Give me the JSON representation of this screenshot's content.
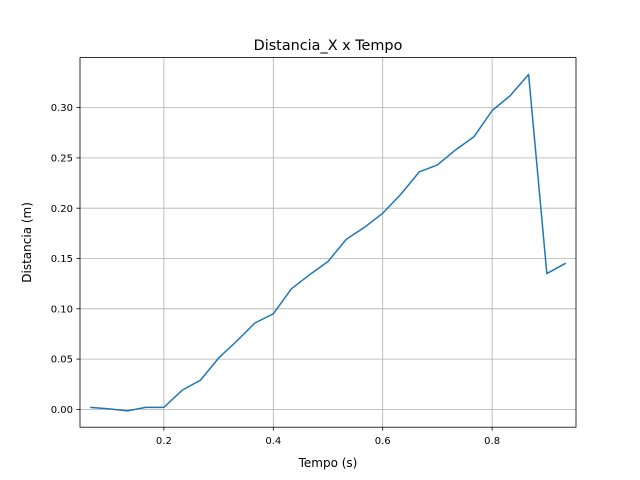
{
  "chart_data": {
    "type": "line",
    "title": "Distancia_X x Tempo",
    "xlabel": "Tempo (s)",
    "ylabel": "Distancia (m)",
    "xlim": [
      0.0467,
      0.9533
    ],
    "ylim": [
      -0.0177,
      0.3497
    ],
    "xticks": [
      0.2,
      0.4,
      0.6,
      0.8
    ],
    "xtick_labels": [
      "0.2",
      "0.4",
      "0.6",
      "0.8"
    ],
    "yticks": [
      0.0,
      0.05,
      0.1,
      0.15,
      0.2,
      0.25,
      0.3
    ],
    "ytick_labels": [
      "0.00",
      "0.05",
      "0.10",
      "0.15",
      "0.20",
      "0.25",
      "0.30"
    ],
    "grid": true,
    "series": [
      {
        "color": "#1f77b4",
        "x": [
          0.0667,
          0.1,
          0.1333,
          0.1667,
          0.2,
          0.2333,
          0.2667,
          0.3,
          0.3333,
          0.3667,
          0.4,
          0.4333,
          0.4667,
          0.5,
          0.5333,
          0.5667,
          0.6,
          0.6333,
          0.6667,
          0.7,
          0.7333,
          0.7667,
          0.8,
          0.8333,
          0.8667,
          0.9,
          0.9333
        ],
        "y": [
          0.002,
          0.0005,
          -0.0015,
          0.002,
          0.002,
          0.019,
          0.029,
          0.051,
          0.068,
          0.086,
          0.095,
          0.12,
          0.134,
          0.147,
          0.169,
          0.181,
          0.195,
          0.214,
          0.236,
          0.243,
          0.258,
          0.271,
          0.297,
          0.312,
          0.333,
          0.135,
          0.145
        ]
      }
    ]
  }
}
